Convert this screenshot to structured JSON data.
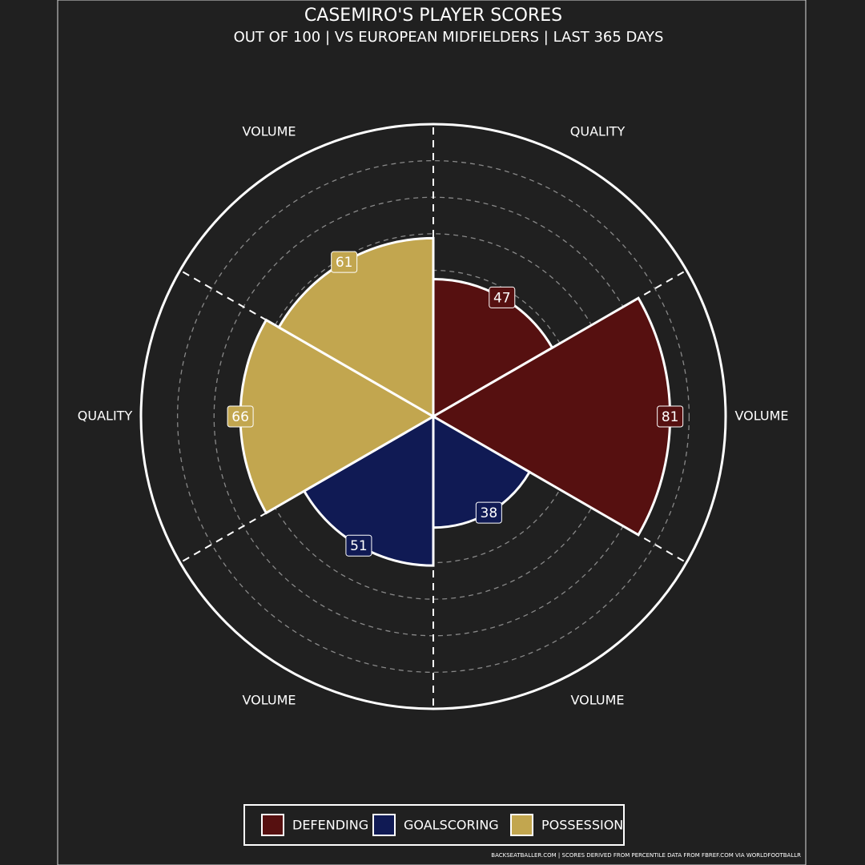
{
  "chart_data": {
    "type": "polar-bar",
    "title": "CASEMIRO'S PLAYER SCORES",
    "subtitle": "OUT OF 100 | VS EUROPEAN MIDFIELDERS | LAST 365 DAYS",
    "categories": [
      "QUALITY",
      "VOLUME",
      "VOLUME",
      "VOLUME",
      "QUALITY",
      "VOLUME"
    ],
    "series": [
      {
        "name": "DEFENDING",
        "color": "#561010",
        "values": [
          47,
          81,
          null,
          null,
          null,
          null
        ]
      },
      {
        "name": "GOALSCORING",
        "color": "#101a54",
        "values": [
          null,
          null,
          38,
          51,
          null,
          null
        ]
      },
      {
        "name": "POSSESSION",
        "color": "#c2a64f",
        "values": [
          null,
          null,
          null,
          null,
          66,
          61
        ]
      }
    ],
    "ylim": [
      0,
      100
    ],
    "yticks": [
      12.5,
      25,
      37.5,
      50,
      62.5,
      75,
      87.5
    ],
    "grid": true,
    "footer": "BACKSEATBALLER.COM | SCORES DERIVED FROM PERCENTILE DATA FROM FBREF.COM VIA WORLDFOOTBALLR"
  }
}
